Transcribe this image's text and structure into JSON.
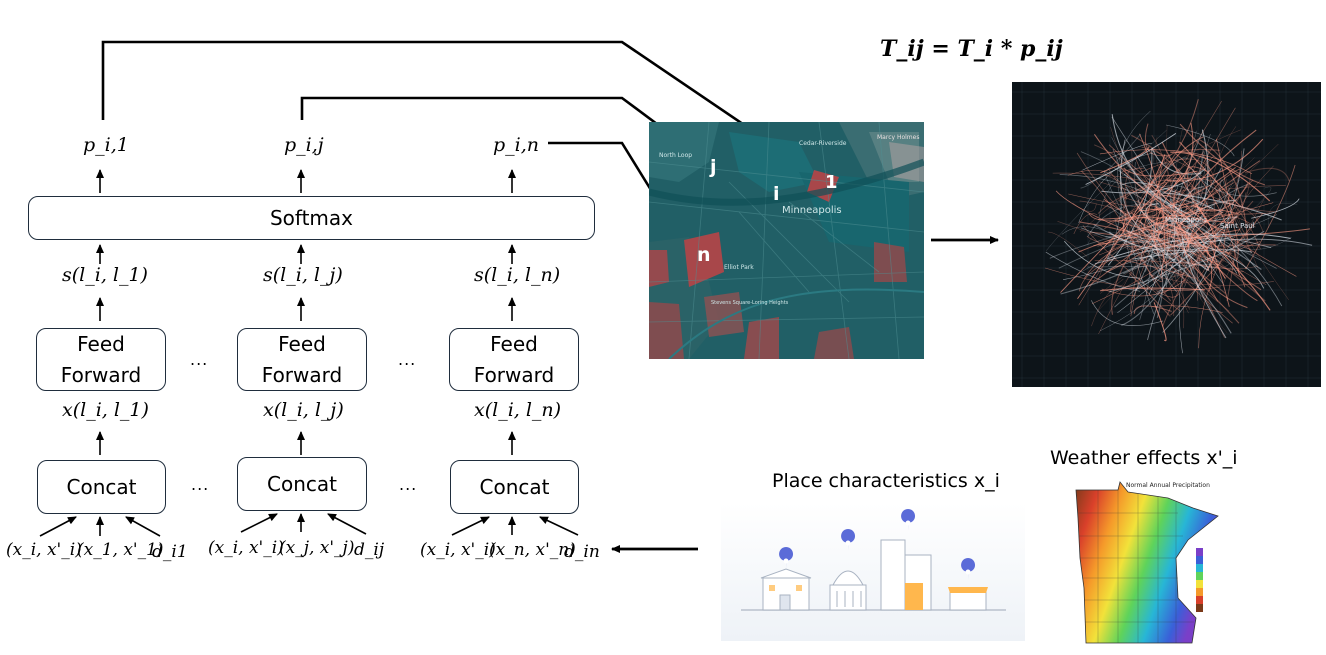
{
  "formula": "T_ij = T_i * p_ij",
  "softmax_label": "Softmax",
  "probabilities": [
    "p_i,1",
    "p_i,j",
    "p_i,n"
  ],
  "scores": [
    "s(l_i, l_1)",
    "s(l_i, l_j)",
    "s(l_i, l_n)"
  ],
  "feed_forward_label": "Feed Forward",
  "feature_vectors": [
    "x(l_i, l_1)",
    "x(l_i, l_j)",
    "x(l_i, l_n)"
  ],
  "concat_label": "Concat",
  "ellipsis": "...",
  "inputs": [
    [
      "(x_i, x'_i)",
      "(x_1, x'_1)",
      "d_i1"
    ],
    [
      "(x_i, x'_i)",
      "(x_j, x'_j)",
      "d_ij"
    ],
    [
      "(x_i, x'_i)",
      "(x_n, x'_n)",
      "d_in"
    ]
  ],
  "map_labels": {
    "j": "j",
    "i": "i",
    "one": "1",
    "n": "n",
    "city": "Minneapolis",
    "neighborhoods": [
      "North Loop",
      "Cedar-Riverside",
      "Elliot Park",
      "Stevens Square-Loring Heights",
      "Saint Paul",
      "Marcy Holmes"
    ]
  },
  "flow_map_labels": [
    "Minneapolis",
    "Saint Paul"
  ],
  "place_characteristics_label": "Place characteristics x_i",
  "weather_effects_label": "Weather effects x'_i",
  "precip_map_title": "Normal  Annual Precipitation",
  "colors": {
    "map_base": "#1f5f63",
    "map_red": "#a8474a",
    "flow_bg": "#0d1419",
    "flow_line": "#ff9b85"
  }
}
